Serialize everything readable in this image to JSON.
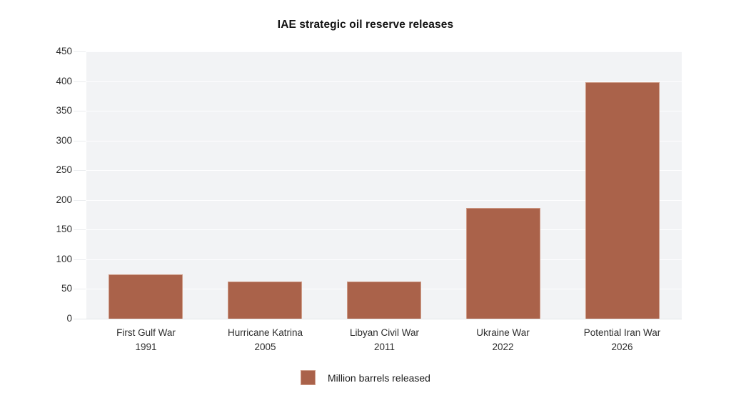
{
  "colors": {
    "bar_fill": "#aa624a",
    "bar_border": "#cf9d89",
    "panel_bg": "#f2f3f5",
    "gridline": "#ffffff",
    "baseline": "#e3e5e8",
    "tick": "#eaecee",
    "title_text": "#121212",
    "axis_text": "#303030"
  },
  "chart_data": {
    "type": "bar",
    "title": "IAE strategic oil reserve releases",
    "categories": [
      {
        "label": "First Gulf War",
        "year": "1991"
      },
      {
        "label": "Hurricane Katrina",
        "year": "2005"
      },
      {
        "label": "Libyan Civil War",
        "year": "2011"
      },
      {
        "label": "Ukraine War",
        "year": "2022"
      },
      {
        "label": "Potential Iran War",
        "year": "2026"
      }
    ],
    "series": [
      {
        "name": "Million barrels released",
        "values": [
          75,
          62,
          62,
          187,
          398
        ]
      }
    ],
    "xlabel": "",
    "ylabel": "",
    "ylim": [
      0,
      450
    ],
    "ytick_step": 50,
    "yticks": [
      0,
      50,
      100,
      150,
      200,
      250,
      300,
      350,
      400,
      450
    ],
    "grid": true,
    "legend_position": "bottom"
  }
}
